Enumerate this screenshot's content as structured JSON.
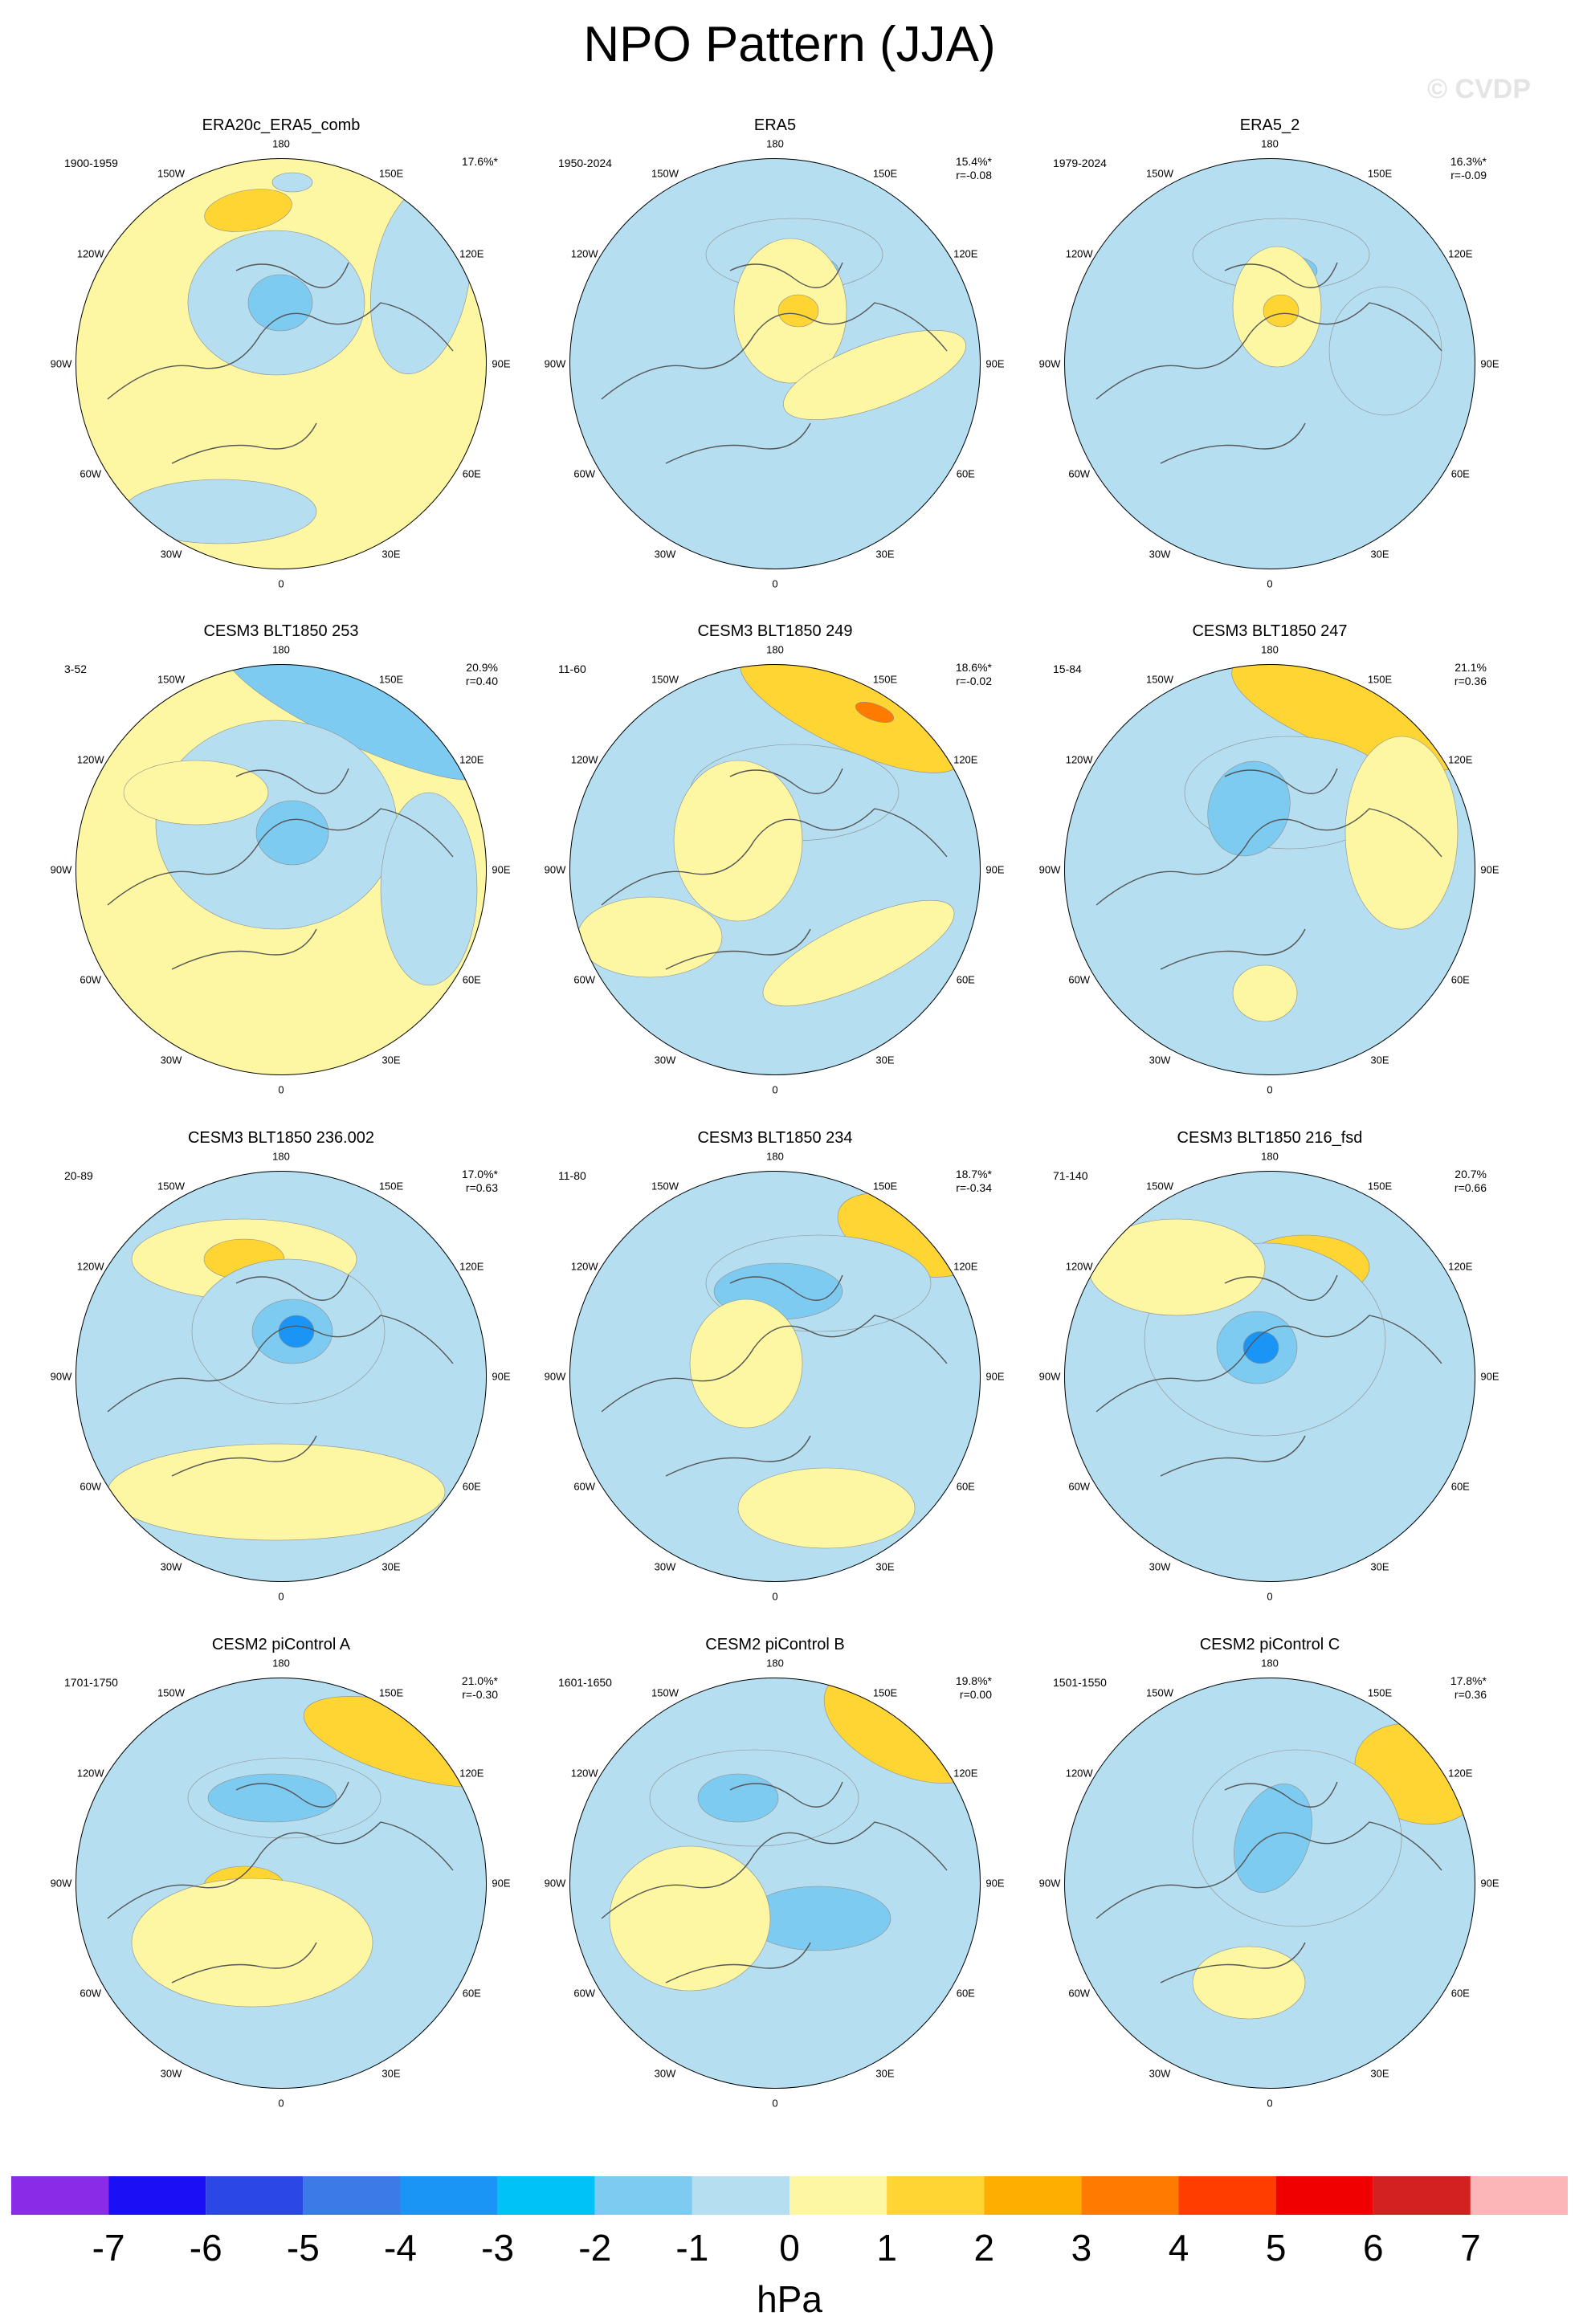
{
  "title": "NPO Pattern (JJA)",
  "watermark": "© CVDP",
  "lon_labels": [
    "180",
    "150E",
    "120E",
    "90E",
    "60E",
    "30E",
    "0",
    "30W",
    "60W",
    "90W",
    "120W",
    "150W"
  ],
  "colors": {
    "land_outline": "#555555",
    "contour_line": "#888888"
  },
  "panels": [
    {
      "title": "ERA20c_ERA5_comb",
      "years": "1900-1959",
      "pct": "17.6%*",
      "r": ""
    },
    {
      "title": "ERA5",
      "years": "1950-2024",
      "pct": "15.4%*",
      "r": "r=-0.08"
    },
    {
      "title": "ERA5_2",
      "years": "1979-2024",
      "pct": "16.3%*",
      "r": "r=-0.09"
    },
    {
      "title": "CESM3 BLT1850 253",
      "years": "3-52",
      "pct": "20.9%",
      "r": "r=0.40"
    },
    {
      "title": "CESM3 BLT1850 249",
      "years": "11-60",
      "pct": "18.6%*",
      "r": "r=-0.02"
    },
    {
      "title": "CESM3 BLT1850 247",
      "years": "15-84",
      "pct": "21.1%",
      "r": "r=0.36"
    },
    {
      "title": "CESM3 BLT1850 236.002",
      "years": "20-89",
      "pct": "17.0%*",
      "r": "r=0.63"
    },
    {
      "title": "CESM3 BLT1850 234",
      "years": "11-80",
      "pct": "18.7%*",
      "r": "r=-0.34"
    },
    {
      "title": "CESM3 BLT1850 216_fsd",
      "years": "71-140",
      "pct": "20.7%",
      "r": "r=0.66"
    },
    {
      "title": "CESM2 piControl A",
      "years": "1701-1750",
      "pct": "21.0%*",
      "r": "r=-0.30"
    },
    {
      "title": "CESM2 piControl B",
      "years": "1601-1650",
      "pct": "19.8%*",
      "r": "r=0.00"
    },
    {
      "title": "CESM2 piControl C",
      "years": "1501-1550",
      "pct": "17.8%*",
      "r": "r=0.36"
    }
  ],
  "colorbar": {
    "units": "hPa",
    "ticks": [
      "-7",
      "-6",
      "-5",
      "-4",
      "-3",
      "-2",
      "-1",
      "0",
      "1",
      "2",
      "3",
      "4",
      "5",
      "6",
      "7"
    ],
    "colors": [
      "#8a2be8",
      "#1a10f5",
      "#2b47e6",
      "#3a7be8",
      "#1a95f6",
      "#00c2f7",
      "#7ecbf1",
      "#b5dff1",
      "#fdf7a3",
      "#fed533",
      "#feae00",
      "#fe7b00",
      "#ff3d00",
      "#f00000",
      "#d32020",
      "#fdb6b8"
    ]
  }
}
